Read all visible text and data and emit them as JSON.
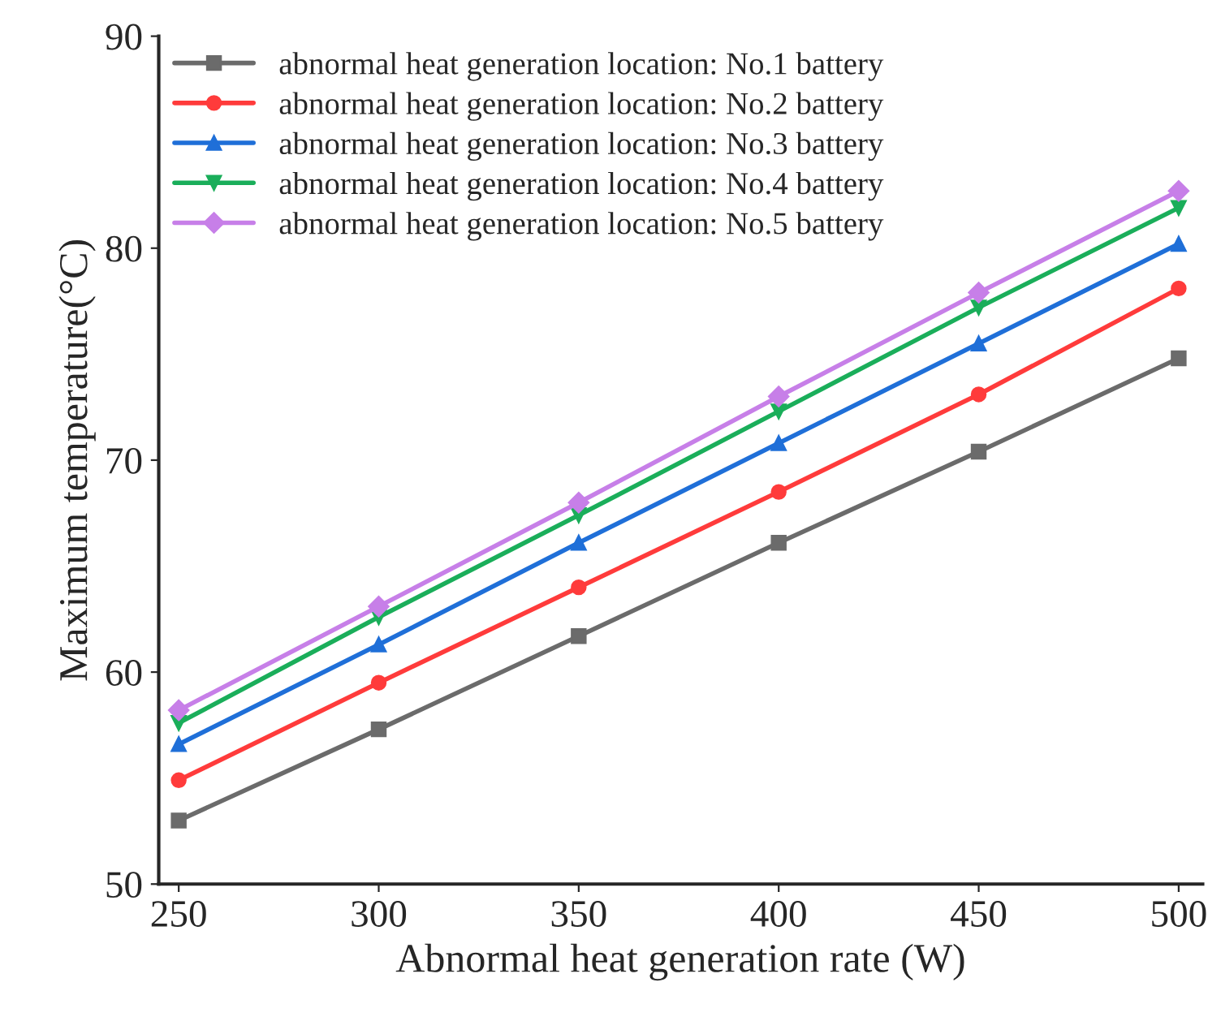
{
  "chart_data": {
    "type": "line",
    "xlabel": "Abnormal heat generation rate (W)",
    "ylabel": "Maximum temperature(°C)",
    "x": [
      250,
      300,
      350,
      400,
      450,
      500
    ],
    "series": [
      {
        "name": "abnormal heat generation location: No.1 battery",
        "color": "#6b6b6b",
        "marker": "square",
        "values": [
          53.0,
          57.3,
          61.7,
          66.1,
          70.4,
          74.8
        ]
      },
      {
        "name": "abnormal heat generation location: No.2 battery",
        "color": "#ff3b3b",
        "marker": "circle",
        "values": [
          54.9,
          59.5,
          64.0,
          68.5,
          73.1,
          78.1
        ]
      },
      {
        "name": "abnormal heat generation location: No.3 battery",
        "color": "#1f6fd8",
        "marker": "triangle",
        "values": [
          56.6,
          61.3,
          66.1,
          70.8,
          75.5,
          80.2
        ]
      },
      {
        "name": "abnormal heat generation location: No.4 battery",
        "color": "#1aae5a",
        "marker": "triangle_down",
        "values": [
          57.6,
          62.6,
          67.4,
          72.3,
          77.2,
          81.9
        ]
      },
      {
        "name": "abnormal heat generation location: No.5 battery",
        "color": "#c77fe8",
        "marker": "diamond",
        "values": [
          58.2,
          63.1,
          68.0,
          73.0,
          77.9,
          82.7
        ]
      }
    ],
    "xlim": [
      245,
      506
    ],
    "ylim": [
      50,
      90
    ],
    "xticks": [
      250,
      300,
      350,
      400,
      450,
      500
    ],
    "yticks": [
      50,
      60,
      70,
      80,
      90
    ],
    "legend": "top left",
    "grid": false,
    "line_style": "solid"
  }
}
